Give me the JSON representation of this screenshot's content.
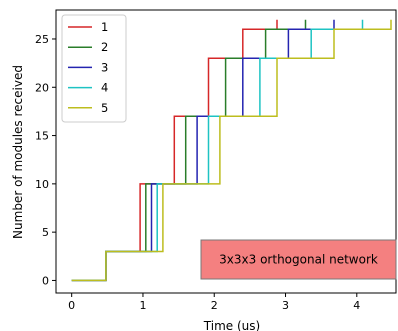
{
  "chart_data": {
    "type": "line",
    "step": true,
    "xlabel": "Time (us)",
    "ylabel": "Number of modules received",
    "xlim": [
      -0.22,
      4.55
    ],
    "ylim": [
      -1.3,
      28
    ],
    "xticks": [
      0,
      1,
      2,
      3,
      4
    ],
    "yticks": [
      0,
      5,
      10,
      15,
      20,
      25
    ],
    "grid": false,
    "legend": "top-left",
    "annotation": {
      "text": "3x3x3 orthogonal network",
      "box_color": "#f48080",
      "position": "lower-right"
    },
    "series": [
      {
        "name": "1",
        "color": "#d62728",
        "x": [
          0,
          0.48,
          0.48,
          0.96,
          0.96,
          1.44,
          1.44,
          1.92,
          1.92,
          2.4,
          2.4,
          2.88,
          2.88
        ],
        "y": [
          0,
          0,
          3,
          3,
          10,
          10,
          17,
          17,
          23,
          23,
          26,
          26,
          27
        ]
      },
      {
        "name": "2",
        "color": "#2a7d2a",
        "x": [
          0,
          0.48,
          0.48,
          1.04,
          1.04,
          1.6,
          1.6,
          2.16,
          2.16,
          2.72,
          2.72,
          3.28,
          3.28
        ],
        "y": [
          0,
          0,
          3,
          3,
          10,
          10,
          17,
          17,
          23,
          23,
          26,
          26,
          27
        ]
      },
      {
        "name": "3",
        "color": "#2424b0",
        "x": [
          0,
          0.48,
          0.48,
          1.12,
          1.12,
          1.76,
          1.76,
          2.4,
          2.4,
          3.04,
          3.04,
          3.68,
          3.68
        ],
        "y": [
          0,
          0,
          3,
          3,
          10,
          10,
          17,
          17,
          23,
          23,
          26,
          26,
          27
        ]
      },
      {
        "name": "4",
        "color": "#1ec3c3",
        "x": [
          0,
          0.48,
          0.48,
          1.2,
          1.2,
          1.92,
          1.92,
          2.64,
          2.64,
          3.36,
          3.36,
          4.08,
          4.08
        ],
        "y": [
          0,
          0,
          3,
          3,
          10,
          10,
          17,
          17,
          23,
          23,
          26,
          26,
          27
        ]
      },
      {
        "name": "5",
        "color": "#bdbd1e",
        "x": [
          0,
          0.48,
          0.48,
          1.28,
          1.28,
          2.08,
          2.08,
          2.88,
          2.88,
          3.68,
          3.68,
          4.48,
          4.48
        ],
        "y": [
          0,
          0,
          3,
          3,
          10,
          10,
          17,
          17,
          23,
          23,
          26,
          26,
          27
        ]
      }
    ]
  }
}
